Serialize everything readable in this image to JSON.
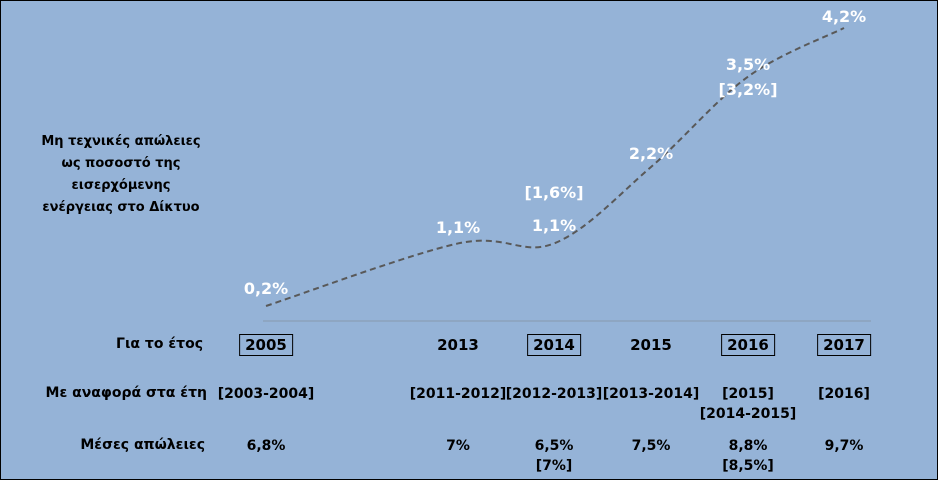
{
  "chart_data": {
    "type": "line",
    "y_axis_label_lines": [
      "Μη τεχνικές απώλειες",
      "ως ποσοστό της",
      "εισερχόμενης",
      "ενέργειας στο Δίκτυο"
    ],
    "points": [
      {
        "year": "2005",
        "value": 0.2,
        "label": "0,2%"
      },
      {
        "year": "2013",
        "value": 1.1,
        "label": "1,1%"
      },
      {
        "year": "2014",
        "value": 1.1,
        "label": "1,1%",
        "alt_label": "[1,6%]"
      },
      {
        "year": "2015",
        "value": 2.2,
        "label": "2,2%"
      },
      {
        "year": "2016",
        "value": 3.5,
        "label": "3,5%",
        "alt_label": "[3,2%]"
      },
      {
        "year": "2017",
        "value": 4.2,
        "label": "4,2%"
      }
    ],
    "line_style": "dashed",
    "line_color": "#595959",
    "value_label_color": "#ffffff",
    "background_color": "#95b3d7"
  },
  "table": {
    "row_labels": {
      "year": "Για το έτος",
      "reference": "Με αναφορά στα έτη",
      "losses": "Μέσες απώλειες"
    },
    "columns": [
      {
        "year": "2005",
        "boxed": true,
        "reference": [
          "[2003-2004]"
        ],
        "losses": [
          "6,8%"
        ]
      },
      {
        "year": "2013",
        "boxed": false,
        "reference": [
          "[2011-2012]"
        ],
        "losses": [
          "7%"
        ]
      },
      {
        "year": "2014",
        "boxed": true,
        "reference": [
          "[2012-2013]"
        ],
        "losses": [
          "6,5%",
          "[7%]"
        ]
      },
      {
        "year": "2015",
        "boxed": false,
        "reference": [
          "[2013-2014]"
        ],
        "losses": [
          "7,5%"
        ]
      },
      {
        "year": "2016",
        "boxed": true,
        "reference": [
          "[2015]",
          "[2014-2015]"
        ],
        "losses": [
          "8,8%",
          "[8,5%]"
        ]
      },
      {
        "year": "2017",
        "boxed": true,
        "reference": [
          "[2016]"
        ],
        "losses": [
          "9,7%"
        ]
      }
    ]
  }
}
